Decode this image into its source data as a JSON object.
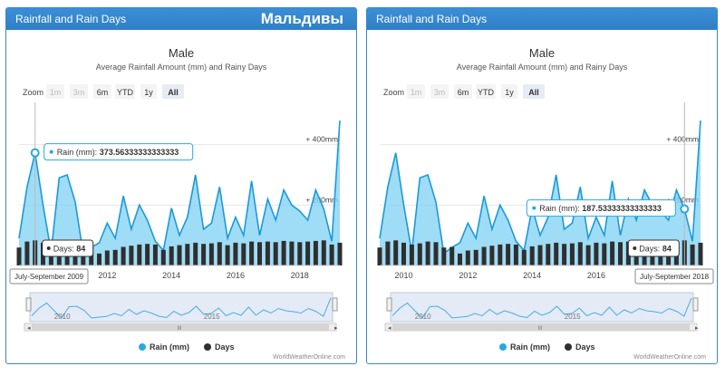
{
  "panels": [
    {
      "id": "left",
      "header": "Rainfall and Rain Days",
      "overlay_title": "Мальдивы",
      "chart_title": "Male",
      "chart_subtitle": "Average Rainfall Amount (mm) and Rainy Days",
      "zoom_label": "Zoom",
      "zoom_buttons": [
        "1m",
        "3m",
        "6m",
        "YTD",
        "1y",
        "All"
      ],
      "zoom_active": "All",
      "zoom_disabled": [
        "1m",
        "3m"
      ],
      "x_ticks": [
        "2012",
        "2014",
        "2016",
        "2018"
      ],
      "y_ticks": [
        "+ 400mm",
        "+ 200mm"
      ],
      "navigator_ticks": [
        "2010",
        "2015"
      ],
      "tooltip_rain_label": "Rain (mm):",
      "tooltip_rain_value": "373.56333333333333",
      "tooltip_days_label": "Days:",
      "tooltip_days_value": "84",
      "tooltip_date": "July-September 2009",
      "legend_rain": "Rain (mm)",
      "legend_days": "Days",
      "credit": "WorldWeatherOnline.com",
      "hover_index": 2
    },
    {
      "id": "right",
      "header": "Rainfall and Rain Days",
      "overlay_title": "",
      "chart_title": "Male",
      "chart_subtitle": "Average Rainfall Amount (mm) and Rainy Days",
      "zoom_label": "Zoom",
      "zoom_buttons": [
        "1m",
        "3m",
        "6m",
        "YTD",
        "1y",
        "All"
      ],
      "zoom_active": "All",
      "zoom_disabled": [
        "1m",
        "3m"
      ],
      "x_ticks": [
        "2010",
        "2012",
        "2014",
        "2016"
      ],
      "y_ticks": [
        "+ 400mm",
        "+ 200mm"
      ],
      "navigator_ticks": [
        "2010",
        "2015"
      ],
      "tooltip_rain_label": "Rain (mm):",
      "tooltip_rain_value": "187.53333333333333",
      "tooltip_days_label": "Days:",
      "tooltip_days_value": "84",
      "tooltip_date": "July-September 2018",
      "legend_rain": "Rain (mm)",
      "legend_days": "Days",
      "credit": "WorldWeatherOnline.com",
      "hover_index": 38
    }
  ],
  "chart_data": {
    "type": "area",
    "title": "Male",
    "subtitle": "Average Rainfall Amount (mm) and Rainy Days",
    "ylim": [
      0,
      480
    ],
    "series": [
      {
        "name": "Rain (mm)",
        "color": "#29a8e0",
        "values": [
          90,
          260,
          373,
          200,
          45,
          290,
          300,
          210,
          40,
          60,
          75,
          140,
          90,
          230,
          120,
          200,
          150,
          80,
          50,
          190,
          100,
          160,
          300,
          120,
          140,
          260,
          90,
          160,
          100,
          280,
          100,
          220,
          150,
          250,
          200,
          180,
          150,
          250,
          187,
          80,
          480
        ]
      },
      {
        "name": "Days",
        "color": "#2f2f2f",
        "values": [
          60,
          80,
          84,
          76,
          70,
          74,
          80,
          78,
          60,
          62,
          40,
          50,
          52,
          62,
          66,
          70,
          72,
          70,
          52,
          64,
          68,
          72,
          76,
          72,
          74,
          78,
          68,
          76,
          74,
          80,
          78,
          80,
          78,
          82,
          80,
          78,
          80,
          82,
          84,
          70,
          76
        ]
      }
    ],
    "x_tick_labels": [
      "2010",
      "2012",
      "2014",
      "2016",
      "2018"
    ]
  }
}
